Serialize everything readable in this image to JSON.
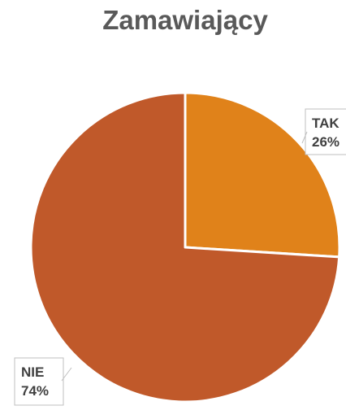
{
  "chart_data": {
    "type": "pie",
    "title": "Zamawiający",
    "slices": [
      {
        "label": "TAK",
        "value": 26,
        "value_label": "26%",
        "color": "#E0821A"
      },
      {
        "label": "NIE",
        "value": 74,
        "value_label": "74%",
        "color": "#C0592A"
      }
    ],
    "start_angle_deg": 0,
    "direction": "clockwise",
    "slice_border_color": "#ffffff"
  }
}
